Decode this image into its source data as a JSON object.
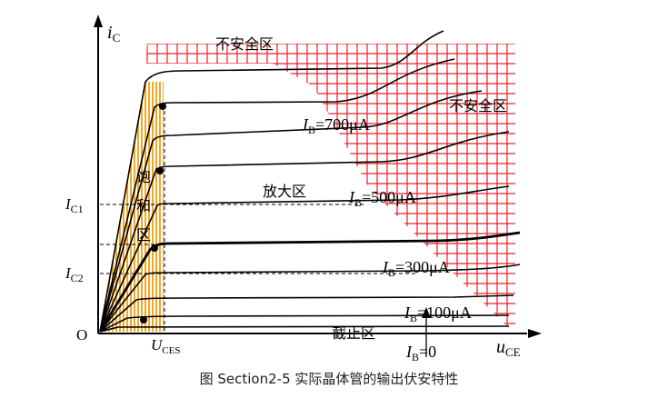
{
  "caption": "图 Section2-5  实际晶体管的输出伏安特性",
  "axes": {
    "y_label": "i",
    "y_sub": "C",
    "x_label": "u",
    "x_sub": "CE",
    "origin": "O"
  },
  "regions": {
    "unsafe_top": "不安全区",
    "unsafe_right": "不安全区",
    "amplification": "放大区",
    "saturation_1": "饱",
    "saturation_2": "和",
    "saturation_3": "区",
    "cutoff": "截止区"
  },
  "ticks": {
    "ic1": "I",
    "ic1_sub": "C1",
    "ic2": "I",
    "ic2_sub": "C2",
    "uces": "U",
    "uces_sub": "CES"
  },
  "curve_labels": {
    "ib_700_i": "I",
    "ib_700_sub": "B",
    "ib_700_val": "=700μA",
    "ib_500_i": "I",
    "ib_500_sub": "B",
    "ib_500_val": "=500μA",
    "ib_300_i": "I",
    "ib_300_sub": "B",
    "ib_300_val": "=300μA",
    "ib_100_i": "I",
    "ib_100_sub": "B",
    "ib_100_val": "=100μA",
    "ib_0_i": "I",
    "ib_0_sub": "B",
    "ib_0_val": "=0"
  },
  "colors": {
    "grid": "#e8202a",
    "saturation_fill": "#f5a623",
    "curve": "#000000"
  }
}
